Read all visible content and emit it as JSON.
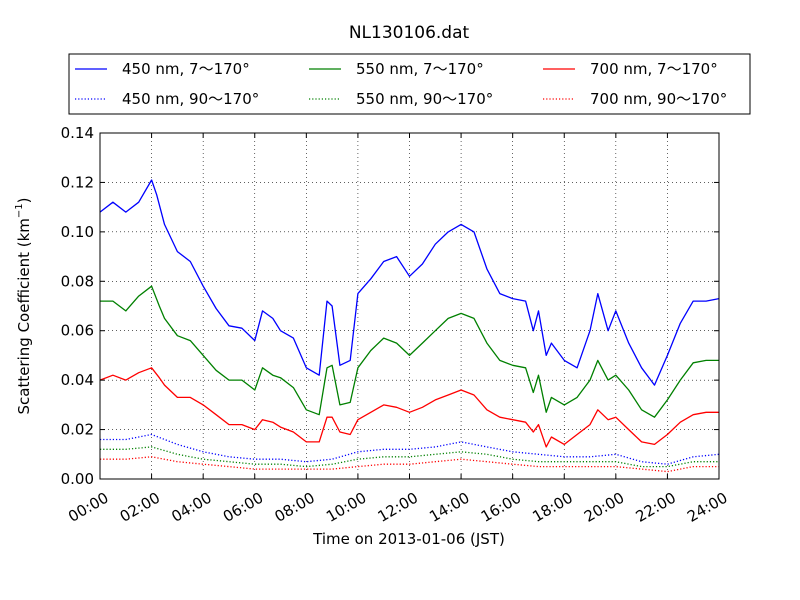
{
  "chart_data": {
    "type": "line",
    "title": "NL130106.dat",
    "xlabel": "Time on 2013-01-06 (JST)",
    "ylabel_main": "Scattering Coefficient (km",
    "ylabel_sup": "−1",
    "ylabel_end": ")",
    "x_unit": "hours",
    "xlim": [
      0,
      24
    ],
    "ylim": [
      0,
      0.14
    ],
    "grid": true,
    "legend_position": "top (above plot, 3 columns)",
    "xticks": [
      0,
      2,
      4,
      6,
      8,
      10,
      12,
      14,
      16,
      18,
      20,
      22,
      24
    ],
    "xtick_labels": [
      "00:00",
      "02:00",
      "04:00",
      "06:00",
      "08:00",
      "10:00",
      "12:00",
      "14:00",
      "16:00",
      "18:00",
      "20:00",
      "22:00",
      "24:00"
    ],
    "yticks": [
      0,
      0.02,
      0.04,
      0.06,
      0.08,
      0.1,
      0.12,
      0.14
    ],
    "ytick_labels": [
      "0.00",
      "0.02",
      "0.04",
      "0.06",
      "0.08",
      "0.10",
      "0.12",
      "0.14"
    ],
    "series": [
      {
        "name": "450 nm, 7～170°",
        "color": "#0000ff",
        "style": "solid",
        "points": [
          [
            0,
            0.108
          ],
          [
            0.5,
            0.112
          ],
          [
            1,
            0.108
          ],
          [
            1.5,
            0.112
          ],
          [
            2,
            0.121
          ],
          [
            2.2,
            0.115
          ],
          [
            2.5,
            0.103
          ],
          [
            3,
            0.092
          ],
          [
            3.5,
            0.088
          ],
          [
            4,
            0.078
          ],
          [
            4.5,
            0.069
          ],
          [
            5,
            0.062
          ],
          [
            5.5,
            0.061
          ],
          [
            6,
            0.056
          ],
          [
            6.3,
            0.068
          ],
          [
            6.7,
            0.065
          ],
          [
            7,
            0.06
          ],
          [
            7.5,
            0.057
          ],
          [
            8,
            0.045
          ],
          [
            8.5,
            0.042
          ],
          [
            8.8,
            0.072
          ],
          [
            9,
            0.07
          ],
          [
            9.3,
            0.046
          ],
          [
            9.7,
            0.048
          ],
          [
            10,
            0.075
          ],
          [
            10.5,
            0.081
          ],
          [
            11,
            0.088
          ],
          [
            11.5,
            0.09
          ],
          [
            12,
            0.082
          ],
          [
            12.5,
            0.087
          ],
          [
            13,
            0.095
          ],
          [
            13.5,
            0.1
          ],
          [
            14,
            0.103
          ],
          [
            14.5,
            0.1
          ],
          [
            15,
            0.085
          ],
          [
            15.5,
            0.075
          ],
          [
            16,
            0.073
          ],
          [
            16.5,
            0.072
          ],
          [
            16.8,
            0.06
          ],
          [
            17,
            0.068
          ],
          [
            17.3,
            0.05
          ],
          [
            17.5,
            0.055
          ],
          [
            18,
            0.048
          ],
          [
            18.5,
            0.045
          ],
          [
            19,
            0.06
          ],
          [
            19.3,
            0.075
          ],
          [
            19.7,
            0.06
          ],
          [
            20,
            0.068
          ],
          [
            20.5,
            0.055
          ],
          [
            21,
            0.045
          ],
          [
            21.5,
            0.038
          ],
          [
            22,
            0.05
          ],
          [
            22.5,
            0.063
          ],
          [
            23,
            0.072
          ],
          [
            23.5,
            0.072
          ],
          [
            24,
            0.073
          ]
        ]
      },
      {
        "name": "450 nm, 90～170°",
        "color": "#0000ff",
        "style": "dotted",
        "points": [
          [
            0,
            0.016
          ],
          [
            1,
            0.016
          ],
          [
            2,
            0.018
          ],
          [
            3,
            0.014
          ],
          [
            4,
            0.011
          ],
          [
            5,
            0.009
          ],
          [
            6,
            0.008
          ],
          [
            7,
            0.008
          ],
          [
            8,
            0.007
          ],
          [
            9,
            0.008
          ],
          [
            10,
            0.011
          ],
          [
            11,
            0.012
          ],
          [
            12,
            0.012
          ],
          [
            13,
            0.013
          ],
          [
            14,
            0.015
          ],
          [
            15,
            0.013
          ],
          [
            16,
            0.011
          ],
          [
            17,
            0.01
          ],
          [
            18,
            0.009
          ],
          [
            19,
            0.009
          ],
          [
            20,
            0.01
          ],
          [
            21,
            0.007
          ],
          [
            22,
            0.006
          ],
          [
            23,
            0.009
          ],
          [
            24,
            0.01
          ]
        ]
      },
      {
        "name": "550 nm, 7～170°",
        "color": "#008000",
        "style": "solid",
        "points": [
          [
            0,
            0.072
          ],
          [
            0.5,
            0.072
          ],
          [
            1,
            0.068
          ],
          [
            1.5,
            0.074
          ],
          [
            2,
            0.078
          ],
          [
            2.3,
            0.07
          ],
          [
            2.5,
            0.065
          ],
          [
            3,
            0.058
          ],
          [
            3.5,
            0.056
          ],
          [
            4,
            0.05
          ],
          [
            4.5,
            0.044
          ],
          [
            5,
            0.04
          ],
          [
            5.5,
            0.04
          ],
          [
            6,
            0.036
          ],
          [
            6.3,
            0.045
          ],
          [
            6.7,
            0.042
          ],
          [
            7,
            0.041
          ],
          [
            7.5,
            0.037
          ],
          [
            8,
            0.028
          ],
          [
            8.5,
            0.026
          ],
          [
            8.8,
            0.045
          ],
          [
            9,
            0.046
          ],
          [
            9.3,
            0.03
          ],
          [
            9.7,
            0.031
          ],
          [
            10,
            0.045
          ],
          [
            10.5,
            0.052
          ],
          [
            11,
            0.057
          ],
          [
            11.5,
            0.055
          ],
          [
            12,
            0.05
          ],
          [
            12.5,
            0.055
          ],
          [
            13,
            0.06
          ],
          [
            13.5,
            0.065
          ],
          [
            14,
            0.067
          ],
          [
            14.5,
            0.065
          ],
          [
            15,
            0.055
          ],
          [
            15.5,
            0.048
          ],
          [
            16,
            0.046
          ],
          [
            16.5,
            0.045
          ],
          [
            16.8,
            0.035
          ],
          [
            17,
            0.042
          ],
          [
            17.3,
            0.027
          ],
          [
            17.5,
            0.033
          ],
          [
            18,
            0.03
          ],
          [
            18.5,
            0.033
          ],
          [
            19,
            0.04
          ],
          [
            19.3,
            0.048
          ],
          [
            19.7,
            0.04
          ],
          [
            20,
            0.042
          ],
          [
            20.5,
            0.036
          ],
          [
            21,
            0.028
          ],
          [
            21.5,
            0.025
          ],
          [
            22,
            0.032
          ],
          [
            22.5,
            0.04
          ],
          [
            23,
            0.047
          ],
          [
            23.5,
            0.048
          ],
          [
            24,
            0.048
          ]
        ]
      },
      {
        "name": "550 nm, 90～170°",
        "color": "#008000",
        "style": "dotted",
        "points": [
          [
            0,
            0.012
          ],
          [
            1,
            0.012
          ],
          [
            2,
            0.013
          ],
          [
            3,
            0.01
          ],
          [
            4,
            0.008
          ],
          [
            5,
            0.007
          ],
          [
            6,
            0.006
          ],
          [
            7,
            0.006
          ],
          [
            8,
            0.005
          ],
          [
            9,
            0.006
          ],
          [
            10,
            0.008
          ],
          [
            11,
            0.009
          ],
          [
            12,
            0.009
          ],
          [
            13,
            0.01
          ],
          [
            14,
            0.011
          ],
          [
            15,
            0.01
          ],
          [
            16,
            0.008
          ],
          [
            17,
            0.007
          ],
          [
            18,
            0.007
          ],
          [
            19,
            0.007
          ],
          [
            20,
            0.007
          ],
          [
            21,
            0.005
          ],
          [
            22,
            0.005
          ],
          [
            23,
            0.007
          ],
          [
            24,
            0.007
          ]
        ]
      },
      {
        "name": "700 nm, 7～170°",
        "color": "#ff0000",
        "style": "solid",
        "points": [
          [
            0,
            0.04
          ],
          [
            0.5,
            0.042
          ],
          [
            1,
            0.04
          ],
          [
            1.5,
            0.043
          ],
          [
            2,
            0.045
          ],
          [
            2.3,
            0.041
          ],
          [
            2.5,
            0.038
          ],
          [
            3,
            0.033
          ],
          [
            3.5,
            0.033
          ],
          [
            4,
            0.03
          ],
          [
            4.5,
            0.026
          ],
          [
            5,
            0.022
          ],
          [
            5.5,
            0.022
          ],
          [
            6,
            0.02
          ],
          [
            6.3,
            0.024
          ],
          [
            6.7,
            0.023
          ],
          [
            7,
            0.021
          ],
          [
            7.5,
            0.019
          ],
          [
            8,
            0.015
          ],
          [
            8.5,
            0.015
          ],
          [
            8.8,
            0.025
          ],
          [
            9,
            0.025
          ],
          [
            9.3,
            0.019
          ],
          [
            9.7,
            0.018
          ],
          [
            10,
            0.024
          ],
          [
            10.5,
            0.027
          ],
          [
            11,
            0.03
          ],
          [
            11.5,
            0.029
          ],
          [
            12,
            0.027
          ],
          [
            12.5,
            0.029
          ],
          [
            13,
            0.032
          ],
          [
            13.5,
            0.034
          ],
          [
            14,
            0.036
          ],
          [
            14.5,
            0.034
          ],
          [
            15,
            0.028
          ],
          [
            15.5,
            0.025
          ],
          [
            16,
            0.024
          ],
          [
            16.5,
            0.023
          ],
          [
            16.8,
            0.019
          ],
          [
            17,
            0.022
          ],
          [
            17.3,
            0.013
          ],
          [
            17.5,
            0.017
          ],
          [
            18,
            0.014
          ],
          [
            18.5,
            0.018
          ],
          [
            19,
            0.022
          ],
          [
            19.3,
            0.028
          ],
          [
            19.7,
            0.024
          ],
          [
            20,
            0.025
          ],
          [
            20.5,
            0.02
          ],
          [
            21,
            0.015
          ],
          [
            21.5,
            0.014
          ],
          [
            22,
            0.018
          ],
          [
            22.5,
            0.023
          ],
          [
            23,
            0.026
          ],
          [
            23.5,
            0.027
          ],
          [
            24,
            0.027
          ]
        ]
      },
      {
        "name": "700 nm, 90～170°",
        "color": "#ff0000",
        "style": "dotted",
        "points": [
          [
            0,
            0.008
          ],
          [
            1,
            0.008
          ],
          [
            2,
            0.009
          ],
          [
            3,
            0.007
          ],
          [
            4,
            0.006
          ],
          [
            5,
            0.005
          ],
          [
            6,
            0.004
          ],
          [
            7,
            0.004
          ],
          [
            8,
            0.004
          ],
          [
            9,
            0.004
          ],
          [
            10,
            0.005
          ],
          [
            11,
            0.006
          ],
          [
            12,
            0.006
          ],
          [
            13,
            0.007
          ],
          [
            14,
            0.008
          ],
          [
            15,
            0.007
          ],
          [
            16,
            0.006
          ],
          [
            17,
            0.005
          ],
          [
            18,
            0.005
          ],
          [
            19,
            0.005
          ],
          [
            20,
            0.005
          ],
          [
            21,
            0.004
          ],
          [
            22,
            0.003
          ],
          [
            23,
            0.005
          ],
          [
            24,
            0.005
          ]
        ]
      }
    ]
  }
}
